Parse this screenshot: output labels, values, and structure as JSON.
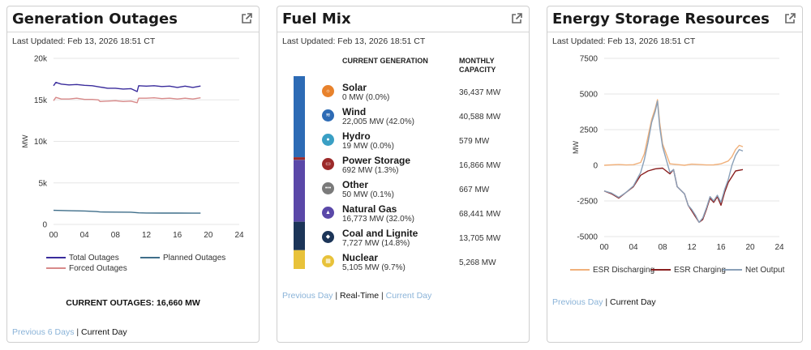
{
  "outages": {
    "title": "Generation Outages",
    "updated": "Last Updated: Feb 13, 2026 18:51 CT",
    "ylabel": "MW",
    "legend": {
      "total": "Total Outages",
      "planned": "Planned Outages",
      "forced": "Forced Outages"
    },
    "current_label": "CURRENT OUTAGES: 16,660 MW",
    "footer": {
      "previous": "Previous 6 Days",
      "sep": "|",
      "current": "Current Day"
    },
    "colors": {
      "total": "#3a2c9c",
      "planned": "#3f6e8a",
      "forced": "#d88a8a"
    }
  },
  "fuel": {
    "title": "Fuel Mix",
    "updated": "Last Updated: Feb 13, 2026 18:51 CT",
    "col_current": "CURRENT GENERATION",
    "col_monthly": "MONTHLY CAPACITY",
    "rows": [
      {
        "name": "Solar",
        "value": "0 MW (0.0%)",
        "capacity": "36,437 MW",
        "icon": "sun-icon",
        "color": "#e8822c"
      },
      {
        "name": "Wind",
        "value": "22,005 MW (42.0%)",
        "capacity": "40,588 MW",
        "icon": "wind-icon",
        "color": "#2d6bb5"
      },
      {
        "name": "Hydro",
        "value": "19 MW (0.0%)",
        "capacity": "579 MW",
        "icon": "water-drop-icon",
        "color": "#3a9fc4"
      },
      {
        "name": "Power Storage",
        "value": "692 MW (1.3%)",
        "capacity": "16,866 MW",
        "icon": "battery-icon",
        "color": "#9c2a2a"
      },
      {
        "name": "Other",
        "value": "50 MW (0.1%)",
        "capacity": "667 MW",
        "icon": "more-icon",
        "color": "#7a7a7a"
      },
      {
        "name": "Natural Gas",
        "value": "16,773 MW (32.0%)",
        "capacity": "68,441 MW",
        "icon": "flame-icon",
        "color": "#5a48a8"
      },
      {
        "name": "Coal and Lignite",
        "value": "7,727 MW (14.8%)",
        "capacity": "13,705 MW",
        "icon": "coal-icon",
        "color": "#1c3558"
      },
      {
        "name": "Nuclear",
        "value": "5,105 MW (9.7%)",
        "capacity": "5,268 MW",
        "icon": "nuclear-icon",
        "color": "#e8c23a"
      }
    ],
    "footer": {
      "previous": "Previous Day",
      "sep1": "|",
      "realtime": "Real-Time",
      "sep2": "|",
      "current": "Current Day"
    }
  },
  "storage": {
    "title": "Energy Storage Resources",
    "updated": "Last Updated: Feb 13, 2026 18:51 CT",
    "ylabel": "MW",
    "legend": {
      "discharging": "ESR Discharging",
      "charging": "ESR Charging",
      "net": "Net Output"
    },
    "footer": {
      "previous": "Previous Day",
      "sep": "|",
      "current": "Current Day"
    },
    "colors": {
      "discharging": "#f0b07a",
      "charging": "#8a1f1f",
      "net": "#8aa0b8"
    }
  },
  "chart_data": [
    {
      "type": "line",
      "xlim": [
        0,
        24
      ],
      "ylim": [
        0,
        20000
      ],
      "xticks": [
        "00",
        "04",
        "08",
        "12",
        "16",
        "20",
        "24"
      ],
      "yticks": [
        "0",
        "5k",
        "10k",
        "15k",
        "20k"
      ],
      "grid": true,
      "legend_position": "bottom",
      "series": [
        {
          "name": "Total Outages",
          "x": [
            0,
            0.3,
            1,
            2,
            3,
            4,
            5,
            6,
            7,
            8,
            9,
            10,
            10.8,
            11,
            12,
            13,
            14,
            15,
            16,
            17,
            18,
            19
          ],
          "values": [
            16700,
            17100,
            16900,
            16800,
            16850,
            16750,
            16700,
            16550,
            16400,
            16400,
            16300,
            16350,
            16000,
            16700,
            16650,
            16700,
            16600,
            16650,
            16500,
            16650,
            16500,
            16660
          ]
        },
        {
          "name": "Planned Outages",
          "x": [
            0,
            2,
            4,
            5.5,
            6,
            8,
            10,
            11,
            12,
            14,
            16,
            18,
            19
          ],
          "values": [
            1700,
            1650,
            1620,
            1550,
            1500,
            1480,
            1470,
            1400,
            1380,
            1370,
            1370,
            1360,
            1360
          ]
        },
        {
          "name": "Forced Outages",
          "x": [
            0,
            0.3,
            1,
            2,
            3,
            4,
            5,
            5.8,
            6,
            7,
            8,
            9,
            10,
            10.8,
            11,
            12,
            13,
            14,
            15,
            16,
            17,
            18,
            19
          ],
          "values": [
            14900,
            15300,
            15100,
            15100,
            15200,
            15050,
            15050,
            15000,
            14800,
            14850,
            14900,
            14800,
            14850,
            14650,
            15200,
            15200,
            15250,
            15150,
            15200,
            15100,
            15200,
            15100,
            15250
          ]
        }
      ]
    },
    {
      "type": "bar",
      "stacked": true,
      "categories": [
        "Solar",
        "Wind",
        "Hydro",
        "Power Storage",
        "Other",
        "Natural Gas",
        "Coal and Lignite",
        "Nuclear"
      ],
      "values": [
        0,
        22005,
        19,
        692,
        50,
        16773,
        7727,
        5105
      ]
    },
    {
      "type": "line",
      "xlim": [
        0,
        24
      ],
      "ylim": [
        -5000,
        7500
      ],
      "xticks": [
        "00",
        "04",
        "08",
        "12",
        "16",
        "20",
        "24"
      ],
      "yticks": [
        "-5000",
        "-2500",
        "0",
        "2500",
        "5000",
        "7500"
      ],
      "grid": true,
      "legend_position": "bottom",
      "series": [
        {
          "name": "ESR Discharging",
          "x": [
            0,
            1,
            2,
            3,
            4,
            5,
            5.5,
            6,
            6.5,
            7,
            7.3,
            7.6,
            8,
            9,
            10,
            11,
            12,
            13,
            14,
            15,
            16,
            17,
            17.5,
            18,
            18.5,
            19
          ],
          "values": [
            0,
            30,
            50,
            20,
            40,
            200,
            800,
            2000,
            3200,
            4000,
            4600,
            3000,
            1500,
            100,
            50,
            0,
            80,
            50,
            20,
            30,
            100,
            300,
            600,
            1100,
            1400,
            1300
          ]
        },
        {
          "name": "ESR Charging",
          "x": [
            0,
            1,
            2,
            3,
            4,
            5,
            6,
            7,
            8,
            9,
            9.5,
            10,
            11,
            11.5,
            12,
            12.5,
            13,
            13.5,
            14,
            14.5,
            15,
            15.5,
            16,
            16.5,
            17,
            18,
            19
          ],
          "values": [
            -1800,
            -2000,
            -2300,
            -1900,
            -1500,
            -700,
            -400,
            -250,
            -200,
            -600,
            -300,
            -1500,
            -2000,
            -2800,
            -3200,
            -3600,
            -4000,
            -3800,
            -3100,
            -2300,
            -2600,
            -2200,
            -2800,
            -1900,
            -1200,
            -400,
            -300
          ]
        },
        {
          "name": "Net Output",
          "x": [
            0,
            1,
            2,
            3,
            4,
            5,
            5.5,
            6,
            6.5,
            7,
            7.3,
            7.6,
            8,
            9,
            9.5,
            10,
            11,
            11.5,
            12,
            12.5,
            13,
            13.5,
            14,
            14.5,
            15,
            15.5,
            16,
            16.5,
            17,
            17.5,
            18,
            18.5,
            19
          ],
          "values": [
            -1800,
            -1950,
            -2250,
            -1900,
            -1450,
            -500,
            400,
            1600,
            3000,
            3800,
            4500,
            2700,
            1300,
            -500,
            -300,
            -1500,
            -2000,
            -2800,
            -3100,
            -3500,
            -4000,
            -3700,
            -3000,
            -2200,
            -2500,
            -2100,
            -2600,
            -1700,
            -1000,
            0,
            700,
            1100,
            1000
          ]
        }
      ]
    }
  ]
}
